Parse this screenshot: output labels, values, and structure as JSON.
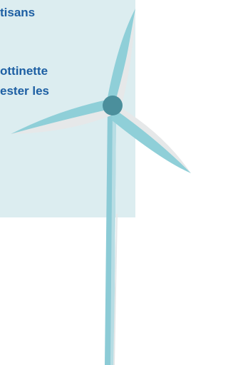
{
  "text": {
    "lines": [
      "tisans",
      "ottinette",
      "ester les"
    ]
  }
}
